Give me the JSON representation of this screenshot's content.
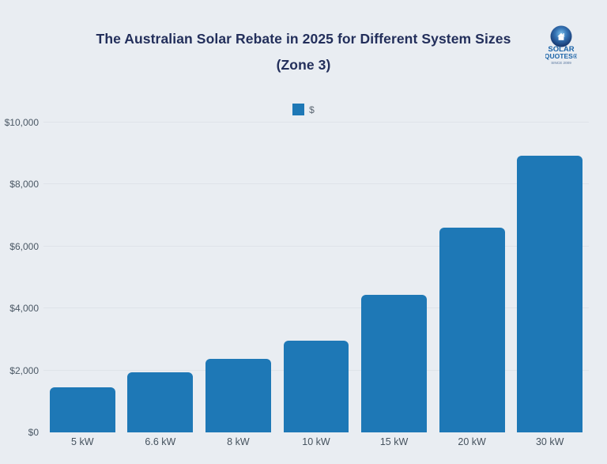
{
  "page": {
    "title_line1": "The Australian Solar Rebate in 2025 for Different System Sizes",
    "title_line2": "(Zone 3)"
  },
  "legend": {
    "label": "$"
  },
  "logo": {
    "line1": "SOLAR",
    "line2": "QUOTES®",
    "line3": "SINCE 2009"
  },
  "colors": {
    "background": "#e9edf2",
    "bar": "#1e78b6",
    "title_text": "#232f5b",
    "axis_text": "#4b5865",
    "gridline": "#dee3e9",
    "logo_text": "#1c64a8"
  },
  "chart_data": {
    "type": "bar",
    "title": "The Australian Solar Rebate in 2025 for Different System Sizes (Zone 3)",
    "categories": [
      "5 kW",
      "6.6 kW",
      "8 kW",
      "10 kW",
      "15 kW",
      "20 kW",
      "30 kW"
    ],
    "series": [
      {
        "name": "$",
        "values": [
          1460,
          1950,
          2380,
          2950,
          4440,
          6600,
          8930
        ]
      }
    ],
    "xlabel": "",
    "ylabel": "",
    "ylim": [
      0,
      10000
    ],
    "ytick_step": 2000,
    "ytick_labels": [
      "$0",
      "$2,000",
      "$4,000",
      "$6,000",
      "$8,000",
      "$10,000"
    ],
    "grid": true,
    "legend_position": "top-center",
    "bar_corner_radius_px": 6
  }
}
